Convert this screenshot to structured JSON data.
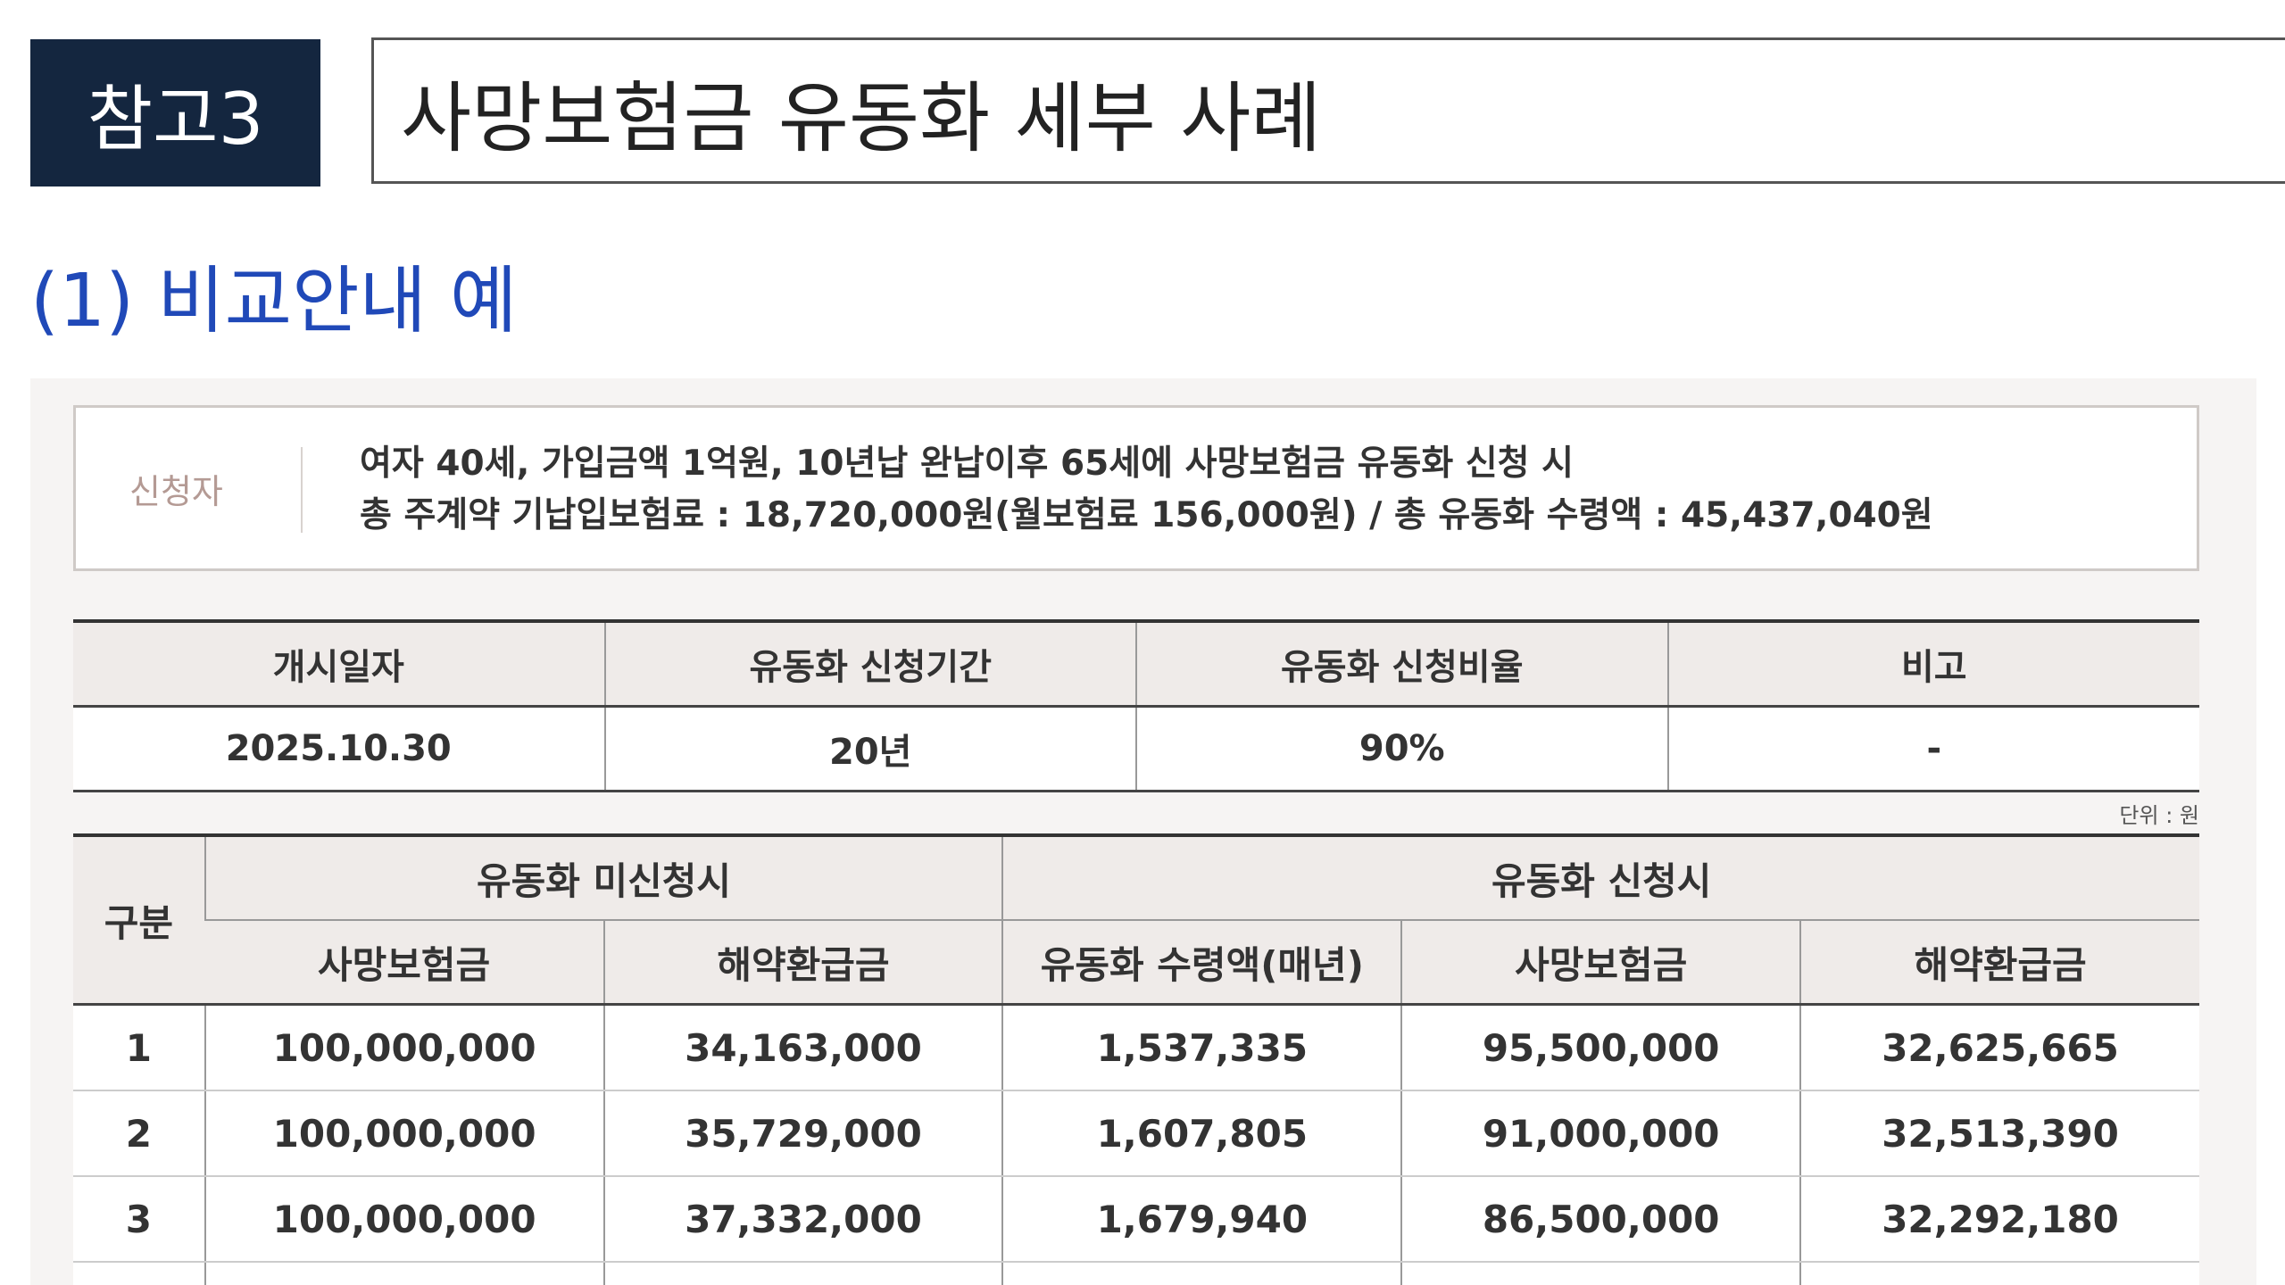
{
  "title": {
    "tag": "참고3",
    "text": "사망보험금 유동화 세부 사례"
  },
  "section_heading": "(1) 비교안내 예",
  "applicant": {
    "label": "신청자",
    "line1": "여자 40세, 가입금액 1억원, 10년납 완납이후 65세에 사망보험금 유동화 신청 시",
    "line2": "총 주계약 기납입보험료 : 18,720,000원(월보험료 156,000원) / 총 유동화 수령액 : 45,437,040원"
  },
  "summary_table": {
    "headers": [
      "개시일자",
      "유동화 신청기간",
      "유동화 신청비율",
      "비고"
    ],
    "row": [
      "2025.10.30",
      "20년",
      "90%",
      "-"
    ]
  },
  "unit_label": "단위 : 원",
  "detail_table": {
    "col_label": "구분",
    "group_not_applied": "유동화 미신청시",
    "group_applied": "유동화 신청시",
    "sub_headers": [
      "사망보험금",
      "해약환급금",
      "유동화 수령액(매년)",
      "사망보험금",
      "해약환급금"
    ],
    "rows": [
      [
        "1",
        "100,000,000",
        "34,163,000",
        "1,537,335",
        "95,500,000",
        "32,625,665"
      ],
      [
        "2",
        "100,000,000",
        "35,729,000",
        "1,607,805",
        "91,000,000",
        "32,513,390"
      ],
      [
        "3",
        "100,000,000",
        "37,332,000",
        "1,679,940",
        "86,500,000",
        "32,292,180"
      ]
    ]
  }
}
